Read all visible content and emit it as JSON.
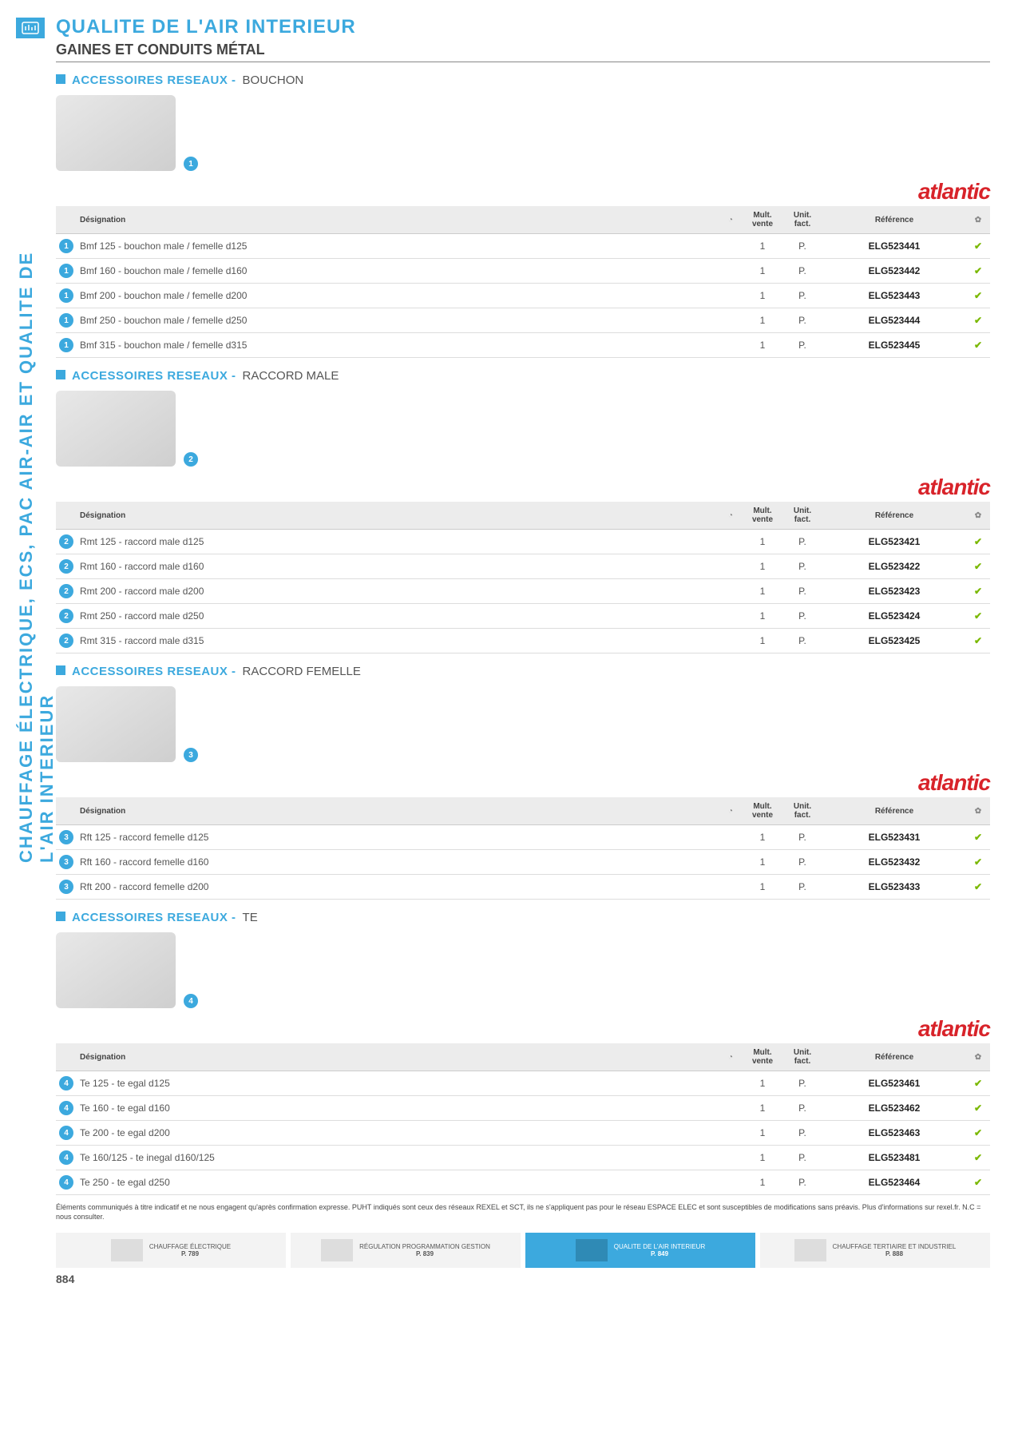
{
  "sideLabel": "CHAUFFAGE ÉLECTRIQUE, ECS, PAC AIR-AIR ET QUALITE DE L'AIR INTERIEUR",
  "titleMain": "QUALITE DE L'AIR INTERIEUR",
  "titleSub": "GAINES ET CONDUITS MÉTAL",
  "brand": "atlantic",
  "columns": {
    "designation": "Désignation",
    "multVente": "Mult. vente",
    "unitFact": "Unit. fact.",
    "reference": "Référence"
  },
  "checkMark": "✔",
  "sections": [
    {
      "pre": "ACCESSOIRES RESEAUX - ",
      "suf": "BOUCHON",
      "badge": "1",
      "rows": [
        {
          "d": "Bmf 125 - bouchon male / femelle d125",
          "mv": "1",
          "uf": "P.",
          "ref": "ELG523441"
        },
        {
          "d": "Bmf 160 - bouchon male / femelle d160",
          "mv": "1",
          "uf": "P.",
          "ref": "ELG523442"
        },
        {
          "d": "Bmf 200 - bouchon male / femelle d200",
          "mv": "1",
          "uf": "P.",
          "ref": "ELG523443"
        },
        {
          "d": "Bmf 250 - bouchon male / femelle d250",
          "mv": "1",
          "uf": "P.",
          "ref": "ELG523444"
        },
        {
          "d": "Bmf 315 - bouchon male / femelle d315",
          "mv": "1",
          "uf": "P.",
          "ref": "ELG523445"
        }
      ]
    },
    {
      "pre": "ACCESSOIRES RESEAUX - ",
      "suf": "RACCORD MALE",
      "badge": "2",
      "rows": [
        {
          "d": "Rmt 125 - raccord male d125",
          "mv": "1",
          "uf": "P.",
          "ref": "ELG523421"
        },
        {
          "d": "Rmt 160 - raccord male d160",
          "mv": "1",
          "uf": "P.",
          "ref": "ELG523422"
        },
        {
          "d": "Rmt 200 - raccord male d200",
          "mv": "1",
          "uf": "P.",
          "ref": "ELG523423"
        },
        {
          "d": "Rmt 250 - raccord male d250",
          "mv": "1",
          "uf": "P.",
          "ref": "ELG523424"
        },
        {
          "d": "Rmt 315 - raccord male d315",
          "mv": "1",
          "uf": "P.",
          "ref": "ELG523425"
        }
      ]
    },
    {
      "pre": "ACCESSOIRES RESEAUX - ",
      "suf": "RACCORD FEMELLE",
      "badge": "3",
      "rows": [
        {
          "d": "Rft 125 - raccord femelle d125",
          "mv": "1",
          "uf": "P.",
          "ref": "ELG523431"
        },
        {
          "d": "Rft 160 - raccord femelle d160",
          "mv": "1",
          "uf": "P.",
          "ref": "ELG523432"
        },
        {
          "d": "Rft 200 - raccord femelle d200",
          "mv": "1",
          "uf": "P.",
          "ref": "ELG523433"
        }
      ]
    },
    {
      "pre": "ACCESSOIRES RESEAUX - ",
      "suf": "TE",
      "badge": "4",
      "rows": [
        {
          "d": "Te 125 - te egal d125",
          "mv": "1",
          "uf": "P.",
          "ref": "ELG523461"
        },
        {
          "d": "Te 160 - te egal d160",
          "mv": "1",
          "uf": "P.",
          "ref": "ELG523462"
        },
        {
          "d": "Te 200 - te egal d200",
          "mv": "1",
          "uf": "P.",
          "ref": "ELG523463"
        },
        {
          "d": "Te 160/125 - te inegal d160/125",
          "mv": "1",
          "uf": "P.",
          "ref": "ELG523481"
        },
        {
          "d": "Te 250 - te egal d250",
          "mv": "1",
          "uf": "P.",
          "ref": "ELG523464"
        }
      ]
    }
  ],
  "footnote": "Éléments communiqués à titre indicatif et ne nous engagent qu'après confirmation expresse. PUHT indiqués sont ceux des réseaux REXEL et SCT, ils ne s'appliquent pas pour le réseau ESPACE ELEC et sont susceptibles de modifications sans préavis. Plus d'informations sur rexel.fr. N.C = nous consulter.",
  "footerNav": [
    {
      "label": "CHAUFFAGE ÉLECTRIQUE",
      "page": "P. 789",
      "active": false
    },
    {
      "label": "RÉGULATION PROGRAMMATION GESTION",
      "page": "P. 839",
      "active": false
    },
    {
      "label": "QUALITE DE L'AIR INTERIEUR",
      "page": "P. 849",
      "active": true
    },
    {
      "label": "CHAUFFAGE TERTIAIRE ET INDUSTRIEL",
      "page": "P. 888",
      "active": false
    }
  ],
  "pageNumber": "884",
  "colors": {
    "accent": "#3ca9de",
    "brand": "#d8232a",
    "check": "#7ab800",
    "rowBorder": "#dddddd",
    "headerBg": "#ececec"
  }
}
